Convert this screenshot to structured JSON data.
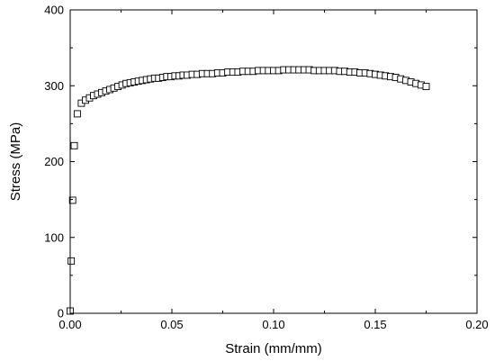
{
  "chart_data": {
    "type": "scatter",
    "xlabel": "Strain (mm/mm)",
    "ylabel": "Stress (MPa)",
    "xlim": [
      0,
      0.2
    ],
    "ylim": [
      0,
      400
    ],
    "xticks": [
      0.0,
      0.05,
      0.1,
      0.15,
      0.2
    ],
    "xtick_labels": [
      "0.00",
      "0.05",
      "0.10",
      "0.15",
      "0.20"
    ],
    "yticks": [
      0,
      100,
      200,
      300,
      400
    ],
    "ytick_labels": [
      "0",
      "100",
      "200",
      "300",
      "400"
    ],
    "grid": false,
    "marker": "open-square",
    "series": [
      {
        "x": [
          0.0,
          0.0005,
          0.0012,
          0.002,
          0.0035,
          0.0055,
          0.0075,
          0.0095,
          0.0115,
          0.0135,
          0.0155,
          0.0175,
          0.0195,
          0.0215,
          0.0235,
          0.0255,
          0.0275,
          0.0295,
          0.0315,
          0.0335,
          0.0355,
          0.0375,
          0.0395,
          0.0415,
          0.0435,
          0.0455,
          0.0475,
          0.0495,
          0.0515,
          0.0535,
          0.0555,
          0.0575,
          0.06,
          0.0625,
          0.065,
          0.0675,
          0.07,
          0.0725,
          0.075,
          0.0775,
          0.08,
          0.0825,
          0.085,
          0.0875,
          0.09,
          0.0925,
          0.095,
          0.0975,
          0.1,
          0.1025,
          0.105,
          0.1075,
          0.11,
          0.1125,
          0.115,
          0.1175,
          0.12,
          0.1225,
          0.125,
          0.1275,
          0.13,
          0.1325,
          0.135,
          0.1375,
          0.14,
          0.1425,
          0.145,
          0.1475,
          0.15,
          0.1525,
          0.155,
          0.1575,
          0.16,
          0.1625,
          0.165,
          0.1675,
          0.17,
          0.1725,
          0.175
        ],
        "y": [
          3,
          69,
          149,
          221,
          263,
          277,
          281,
          284,
          287,
          289,
          291,
          293,
          295,
          297,
          299,
          301,
          303,
          304,
          305,
          306,
          307,
          308,
          309,
          310,
          310,
          311,
          312,
          312,
          313,
          313,
          314,
          314,
          315,
          315,
          316,
          316,
          316,
          317,
          317,
          318,
          318,
          318,
          319,
          319,
          319,
          320,
          320,
          320,
          320,
          320,
          321,
          321,
          321,
          321,
          321,
          321,
          320,
          320,
          320,
          320,
          320,
          319,
          319,
          318,
          318,
          317,
          317,
          316,
          315,
          314,
          313,
          312,
          311,
          309,
          307,
          305,
          303,
          301,
          299
        ]
      }
    ]
  }
}
